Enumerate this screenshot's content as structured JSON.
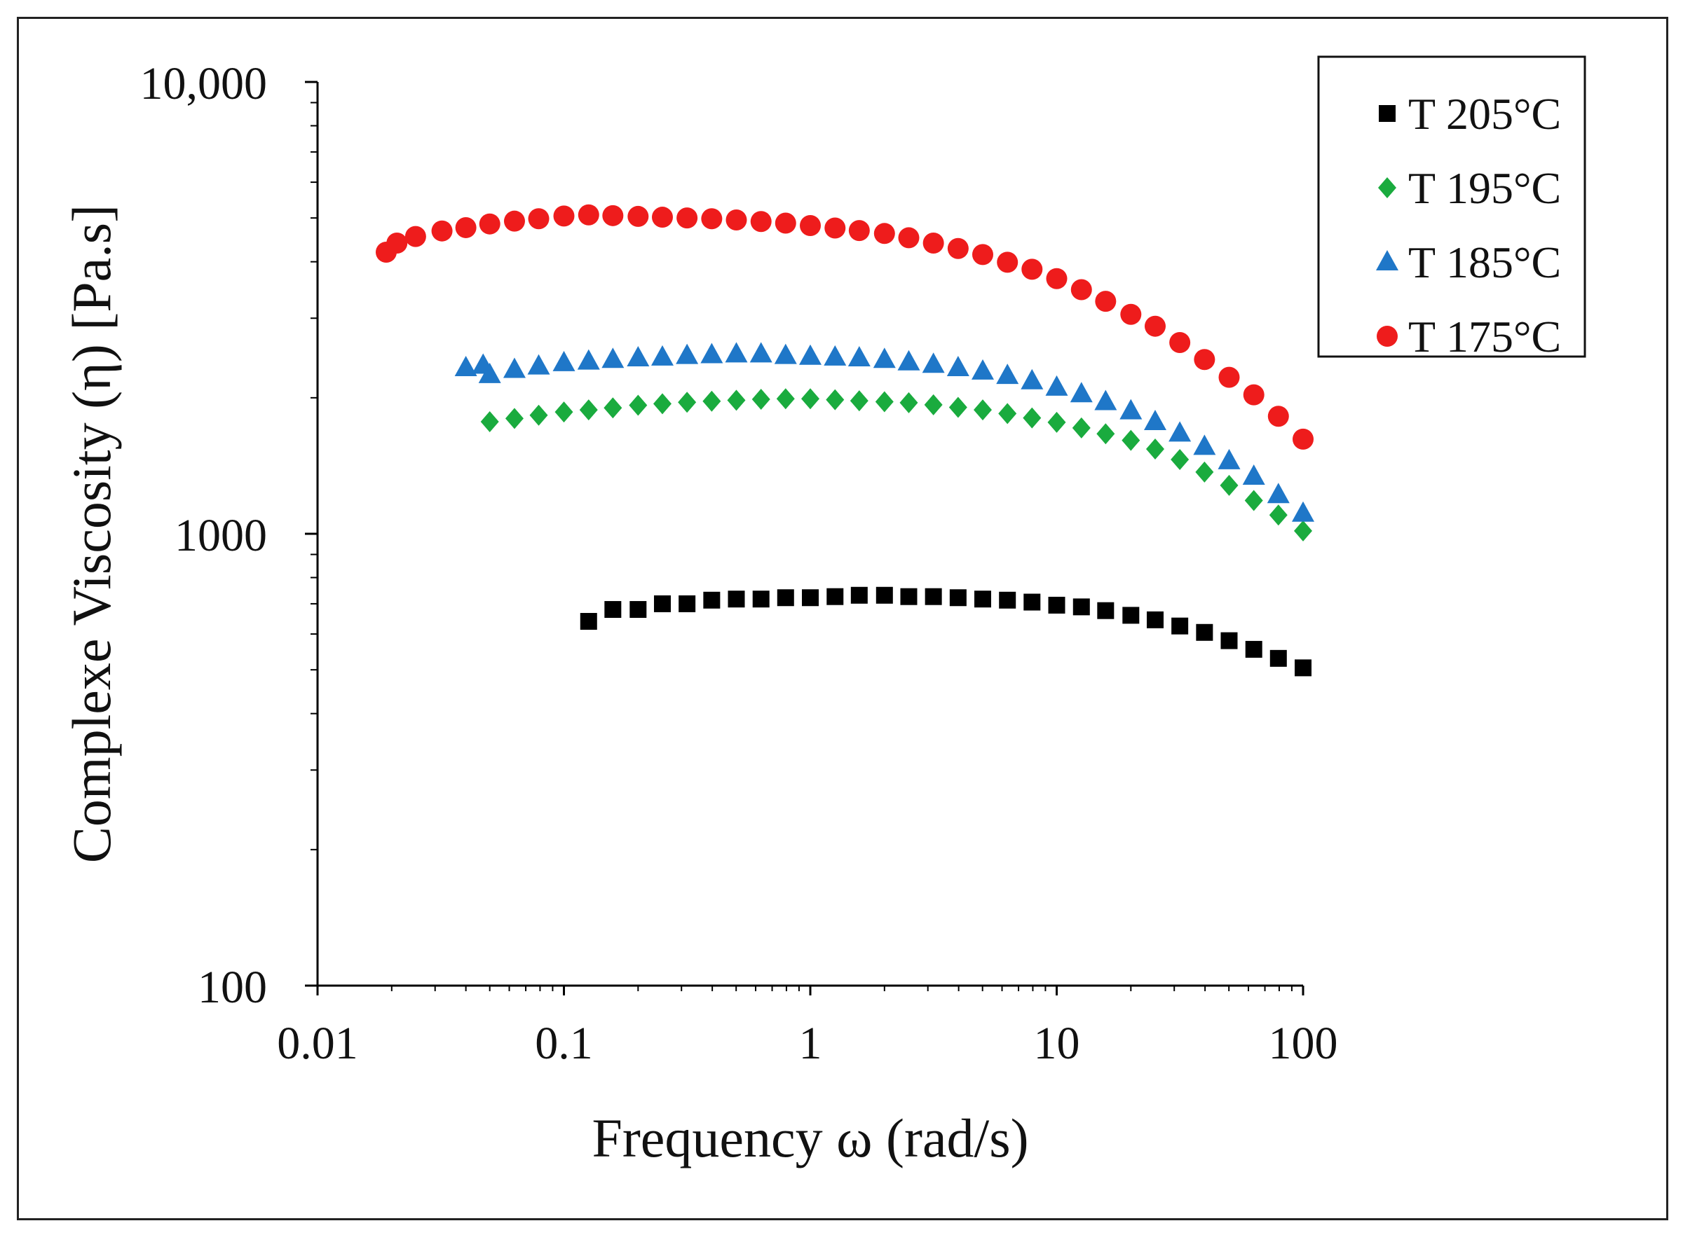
{
  "chart_data": {
    "type": "scatter",
    "title": "",
    "xlabel": "Frequency ω (rad/s)",
    "ylabel": "Complexe Viscosity (η) [Pa.s]",
    "xscale": "log",
    "yscale": "log",
    "xlim": [
      0.01,
      100
    ],
    "ylim": [
      100,
      10000
    ],
    "x_ticks": [
      0.01,
      0.1,
      1,
      10,
      100
    ],
    "x_tick_labels": [
      "0.01",
      "0.1",
      "1",
      "10",
      "100"
    ],
    "y_ticks": [
      100,
      1000,
      10000
    ],
    "y_tick_labels": [
      "100",
      "1000",
      "10,000"
    ],
    "grid": false,
    "legend_position": "top-right",
    "series": [
      {
        "name": "T 205°C",
        "marker": "square",
        "color": "#000000",
        "x": [
          0.126,
          0.158,
          0.2,
          0.251,
          0.316,
          0.398,
          0.501,
          0.631,
          0.794,
          1.0,
          1.26,
          1.58,
          2.0,
          2.51,
          3.16,
          3.98,
          5.01,
          6.31,
          7.94,
          10.0,
          12.6,
          15.8,
          20.0,
          25.1,
          31.6,
          39.8,
          50.1,
          63.1,
          79.4,
          100
        ],
        "y": [
          640,
          680,
          680,
          700,
          700,
          713,
          717,
          717,
          722,
          722,
          726,
          731,
          731,
          726,
          726,
          722,
          717,
          713,
          706,
          695,
          689,
          676,
          660,
          645,
          625,
          605,
          580,
          555,
          530,
          505
        ]
      },
      {
        "name": "T 195°C",
        "marker": "diamond",
        "color": "#1aab3e",
        "x": [
          0.05,
          0.063,
          0.079,
          0.1,
          0.126,
          0.158,
          0.2,
          0.251,
          0.316,
          0.398,
          0.501,
          0.631,
          0.794,
          1.0,
          1.26,
          1.58,
          2.0,
          2.51,
          3.16,
          3.98,
          5.01,
          6.31,
          7.94,
          10.0,
          12.6,
          15.8,
          20.0,
          25.1,
          31.6,
          39.8,
          50.1,
          63.1,
          79.4,
          100
        ],
        "y": [
          1770,
          1800,
          1830,
          1860,
          1880,
          1900,
          1925,
          1940,
          1955,
          1965,
          1975,
          1985,
          1990,
          1990,
          1980,
          1970,
          1960,
          1950,
          1930,
          1905,
          1880,
          1845,
          1805,
          1765,
          1715,
          1665,
          1610,
          1540,
          1460,
          1370,
          1280,
          1185,
          1100,
          1015
        ]
      },
      {
        "name": "T 185°C",
        "marker": "triangle",
        "color": "#1f77c8",
        "x": [
          0.04,
          0.047,
          0.05,
          0.063,
          0.079,
          0.1,
          0.126,
          0.158,
          0.2,
          0.251,
          0.316,
          0.398,
          0.501,
          0.631,
          0.794,
          1.0,
          1.26,
          1.58,
          2.0,
          2.51,
          3.16,
          3.98,
          5.01,
          6.31,
          7.94,
          10.0,
          12.6,
          15.8,
          20.0,
          25.1,
          31.6,
          39.8,
          50.1,
          63.1,
          79.4,
          100
        ],
        "y": [
          2330,
          2360,
          2250,
          2310,
          2350,
          2390,
          2410,
          2430,
          2450,
          2460,
          2480,
          2490,
          2500,
          2500,
          2480,
          2470,
          2460,
          2450,
          2430,
          2400,
          2370,
          2330,
          2290,
          2240,
          2180,
          2110,
          2040,
          1960,
          1870,
          1770,
          1670,
          1560,
          1450,
          1340,
          1220,
          1110
        ]
      },
      {
        "name": "T 175°C",
        "marker": "circle",
        "color": "#ee1c1c",
        "x": [
          0.019,
          0.021,
          0.025,
          0.032,
          0.04,
          0.05,
          0.063,
          0.079,
          0.1,
          0.126,
          0.158,
          0.2,
          0.251,
          0.316,
          0.398,
          0.501,
          0.631,
          0.794,
          1.0,
          1.26,
          1.58,
          2.0,
          2.51,
          3.16,
          3.98,
          5.01,
          6.31,
          7.94,
          10.0,
          12.6,
          15.8,
          20.0,
          25.1,
          31.6,
          39.8,
          50.1,
          63.1,
          79.4,
          100
        ],
        "y": [
          4200,
          4400,
          4550,
          4680,
          4760,
          4850,
          4920,
          4980,
          5050,
          5080,
          5060,
          5040,
          5020,
          5000,
          4980,
          4950,
          4910,
          4870,
          4810,
          4750,
          4690,
          4620,
          4520,
          4400,
          4280,
          4150,
          3990,
          3850,
          3670,
          3470,
          3270,
          3060,
          2880,
          2650,
          2430,
          2220,
          2030,
          1820,
          1620
        ]
      }
    ]
  }
}
